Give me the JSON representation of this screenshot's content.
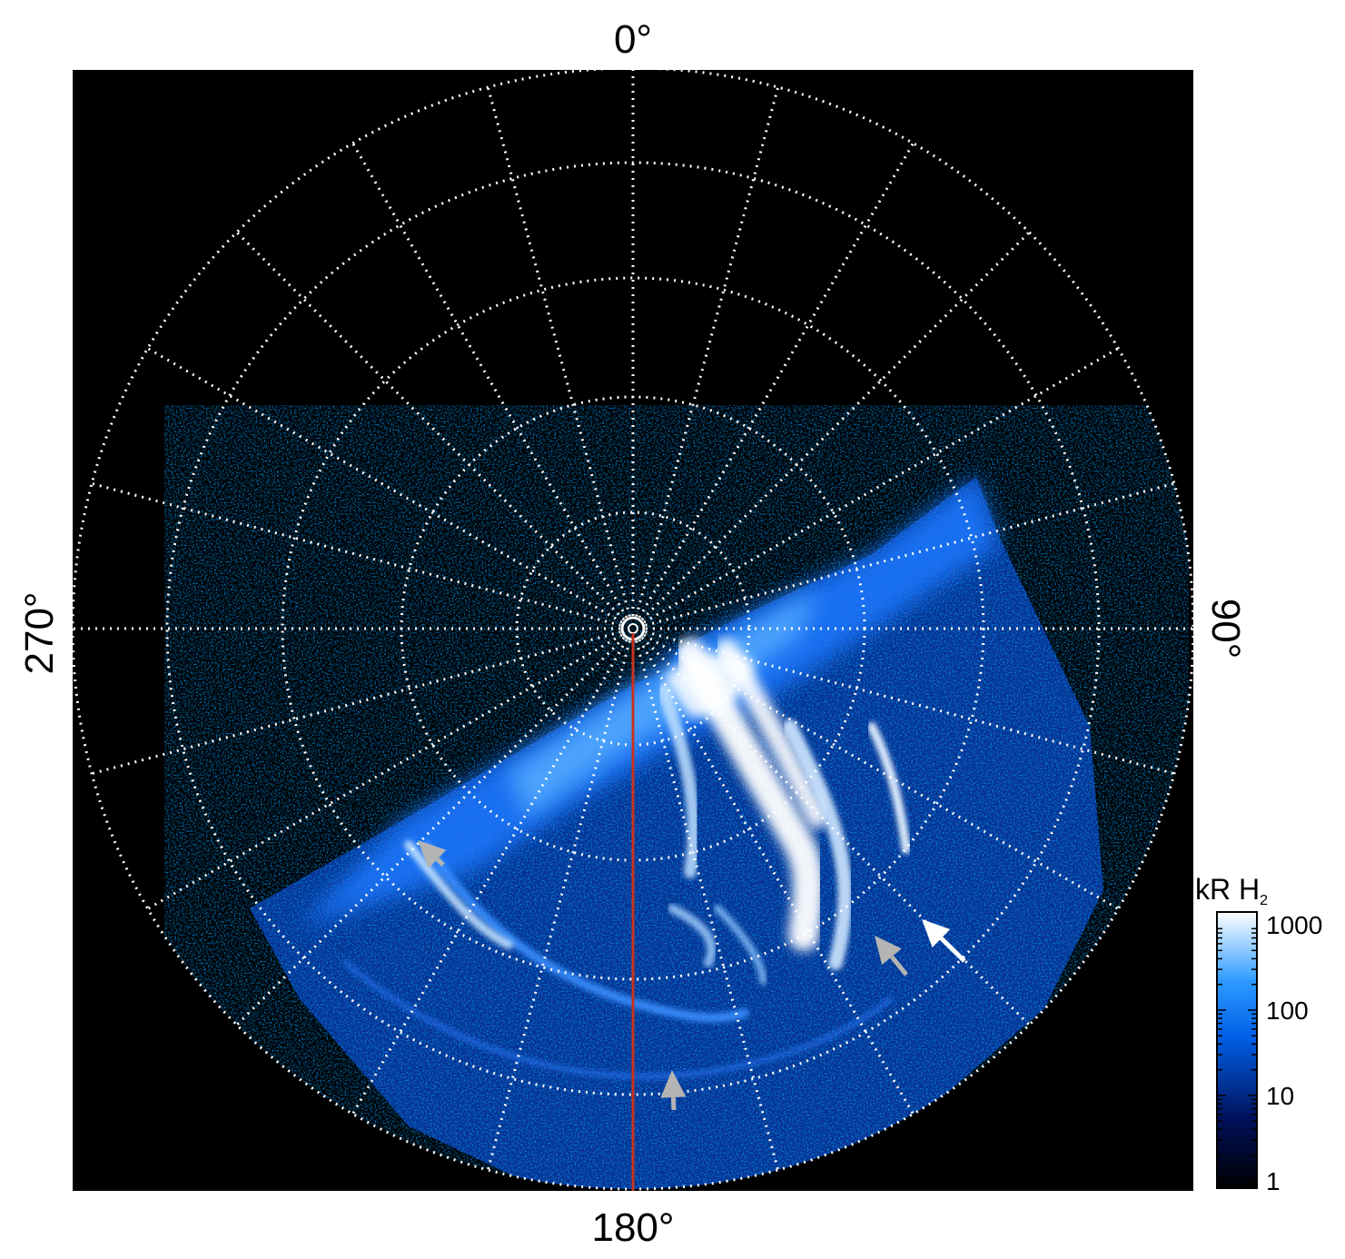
{
  "axis_labels": {
    "top": "0°",
    "bottom": "180°",
    "left": "270°",
    "right": "90°"
  },
  "colorbar": {
    "title": "kR H",
    "title_subscript": "2",
    "ticks": [
      "1000",
      "100",
      "10",
      "1"
    ],
    "scale": "log"
  },
  "colors": {
    "background": "#000000",
    "grid": "#ffffff",
    "meridian_line": "#c8321e",
    "arrow_white": "#ffffff",
    "arrow_gray": "#b4b4b4",
    "aurora_low": "#000000",
    "aurora_mid": "#0066ff",
    "aurora_high": "#ffffff"
  }
}
